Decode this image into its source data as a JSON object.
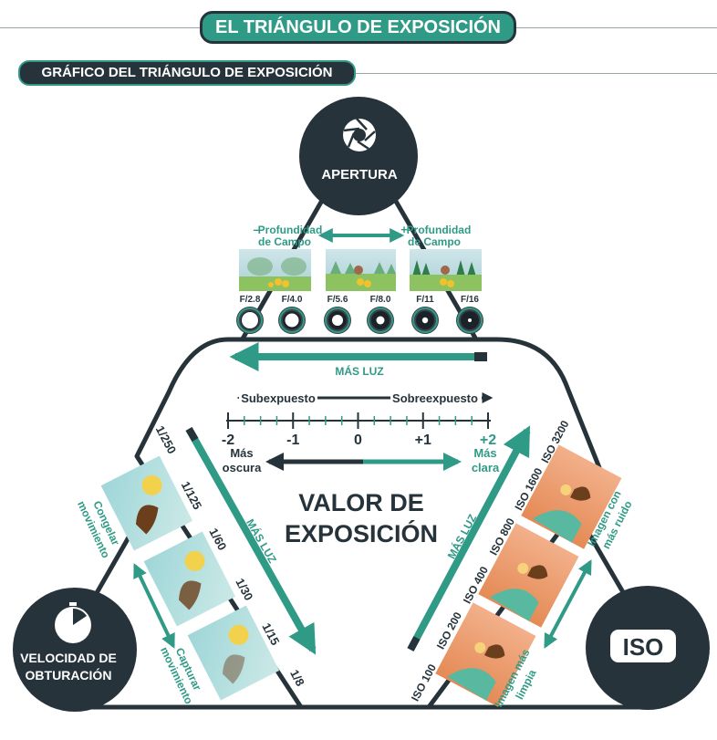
{
  "title": "EL TRIÁNGULO DE EXPOSICIÓN",
  "subtitle": "GRÁFICO DEL TRIÁNGULO DE EXPOSICIÓN",
  "colors": {
    "dark": "#26333b",
    "teal": "#2f9a86",
    "light_teal": "#4fb5a0"
  },
  "aperture": {
    "label": "APERTURA",
    "icon": "aperture-icon",
    "less_dof_line1": "Profundidad",
    "less_dof_line2": "de Campo",
    "less_sign": "–",
    "more_dof_line1": "Profundidad",
    "more_dof_line2": "de Campo",
    "more_sign": "+",
    "stops": [
      "F/2.8",
      "F/4.0",
      "F/5.6",
      "F/8.0",
      "F/11",
      "F/16"
    ]
  },
  "center": {
    "mas_luz_top": "MÁS LUZ",
    "underexposed": "Subexpuesto",
    "overexposed": "Sobreexpuesto",
    "scale": [
      "-2",
      "-1",
      "0",
      "+1",
      "+2"
    ],
    "darker_line1": "Más",
    "darker_line2": "oscura",
    "lighter_line1": "Más",
    "lighter_line2": "clara",
    "value_line1": "VALOR DE",
    "value_line2": "EXPOSICIÓN"
  },
  "shutter": {
    "label_line1": "VELOCIDAD DE",
    "label_line2": "OBTURACIÓN",
    "icon": "stopwatch-icon",
    "speeds": [
      "1/250",
      "1/125",
      "1/60",
      "1/30",
      "1/15",
      "1/8"
    ],
    "freeze_line1": "Congelar",
    "freeze_line2": "movimiento",
    "capture_line1": "Capturar",
    "capture_line2": "movimiento",
    "mas_luz": "MÁS LUZ"
  },
  "iso": {
    "label": "ISO",
    "values": [
      "ISO 100",
      "ISO 200",
      "ISO 400",
      "ISO 800",
      "ISO 1600",
      "ISO 3200"
    ],
    "cleaner_line1": "Imagen más",
    "cleaner_line2": "limpia",
    "noisier_line1": "Imagen con",
    "noisier_line2": "más ruido",
    "mas_luz": "MÁS LUZ"
  }
}
